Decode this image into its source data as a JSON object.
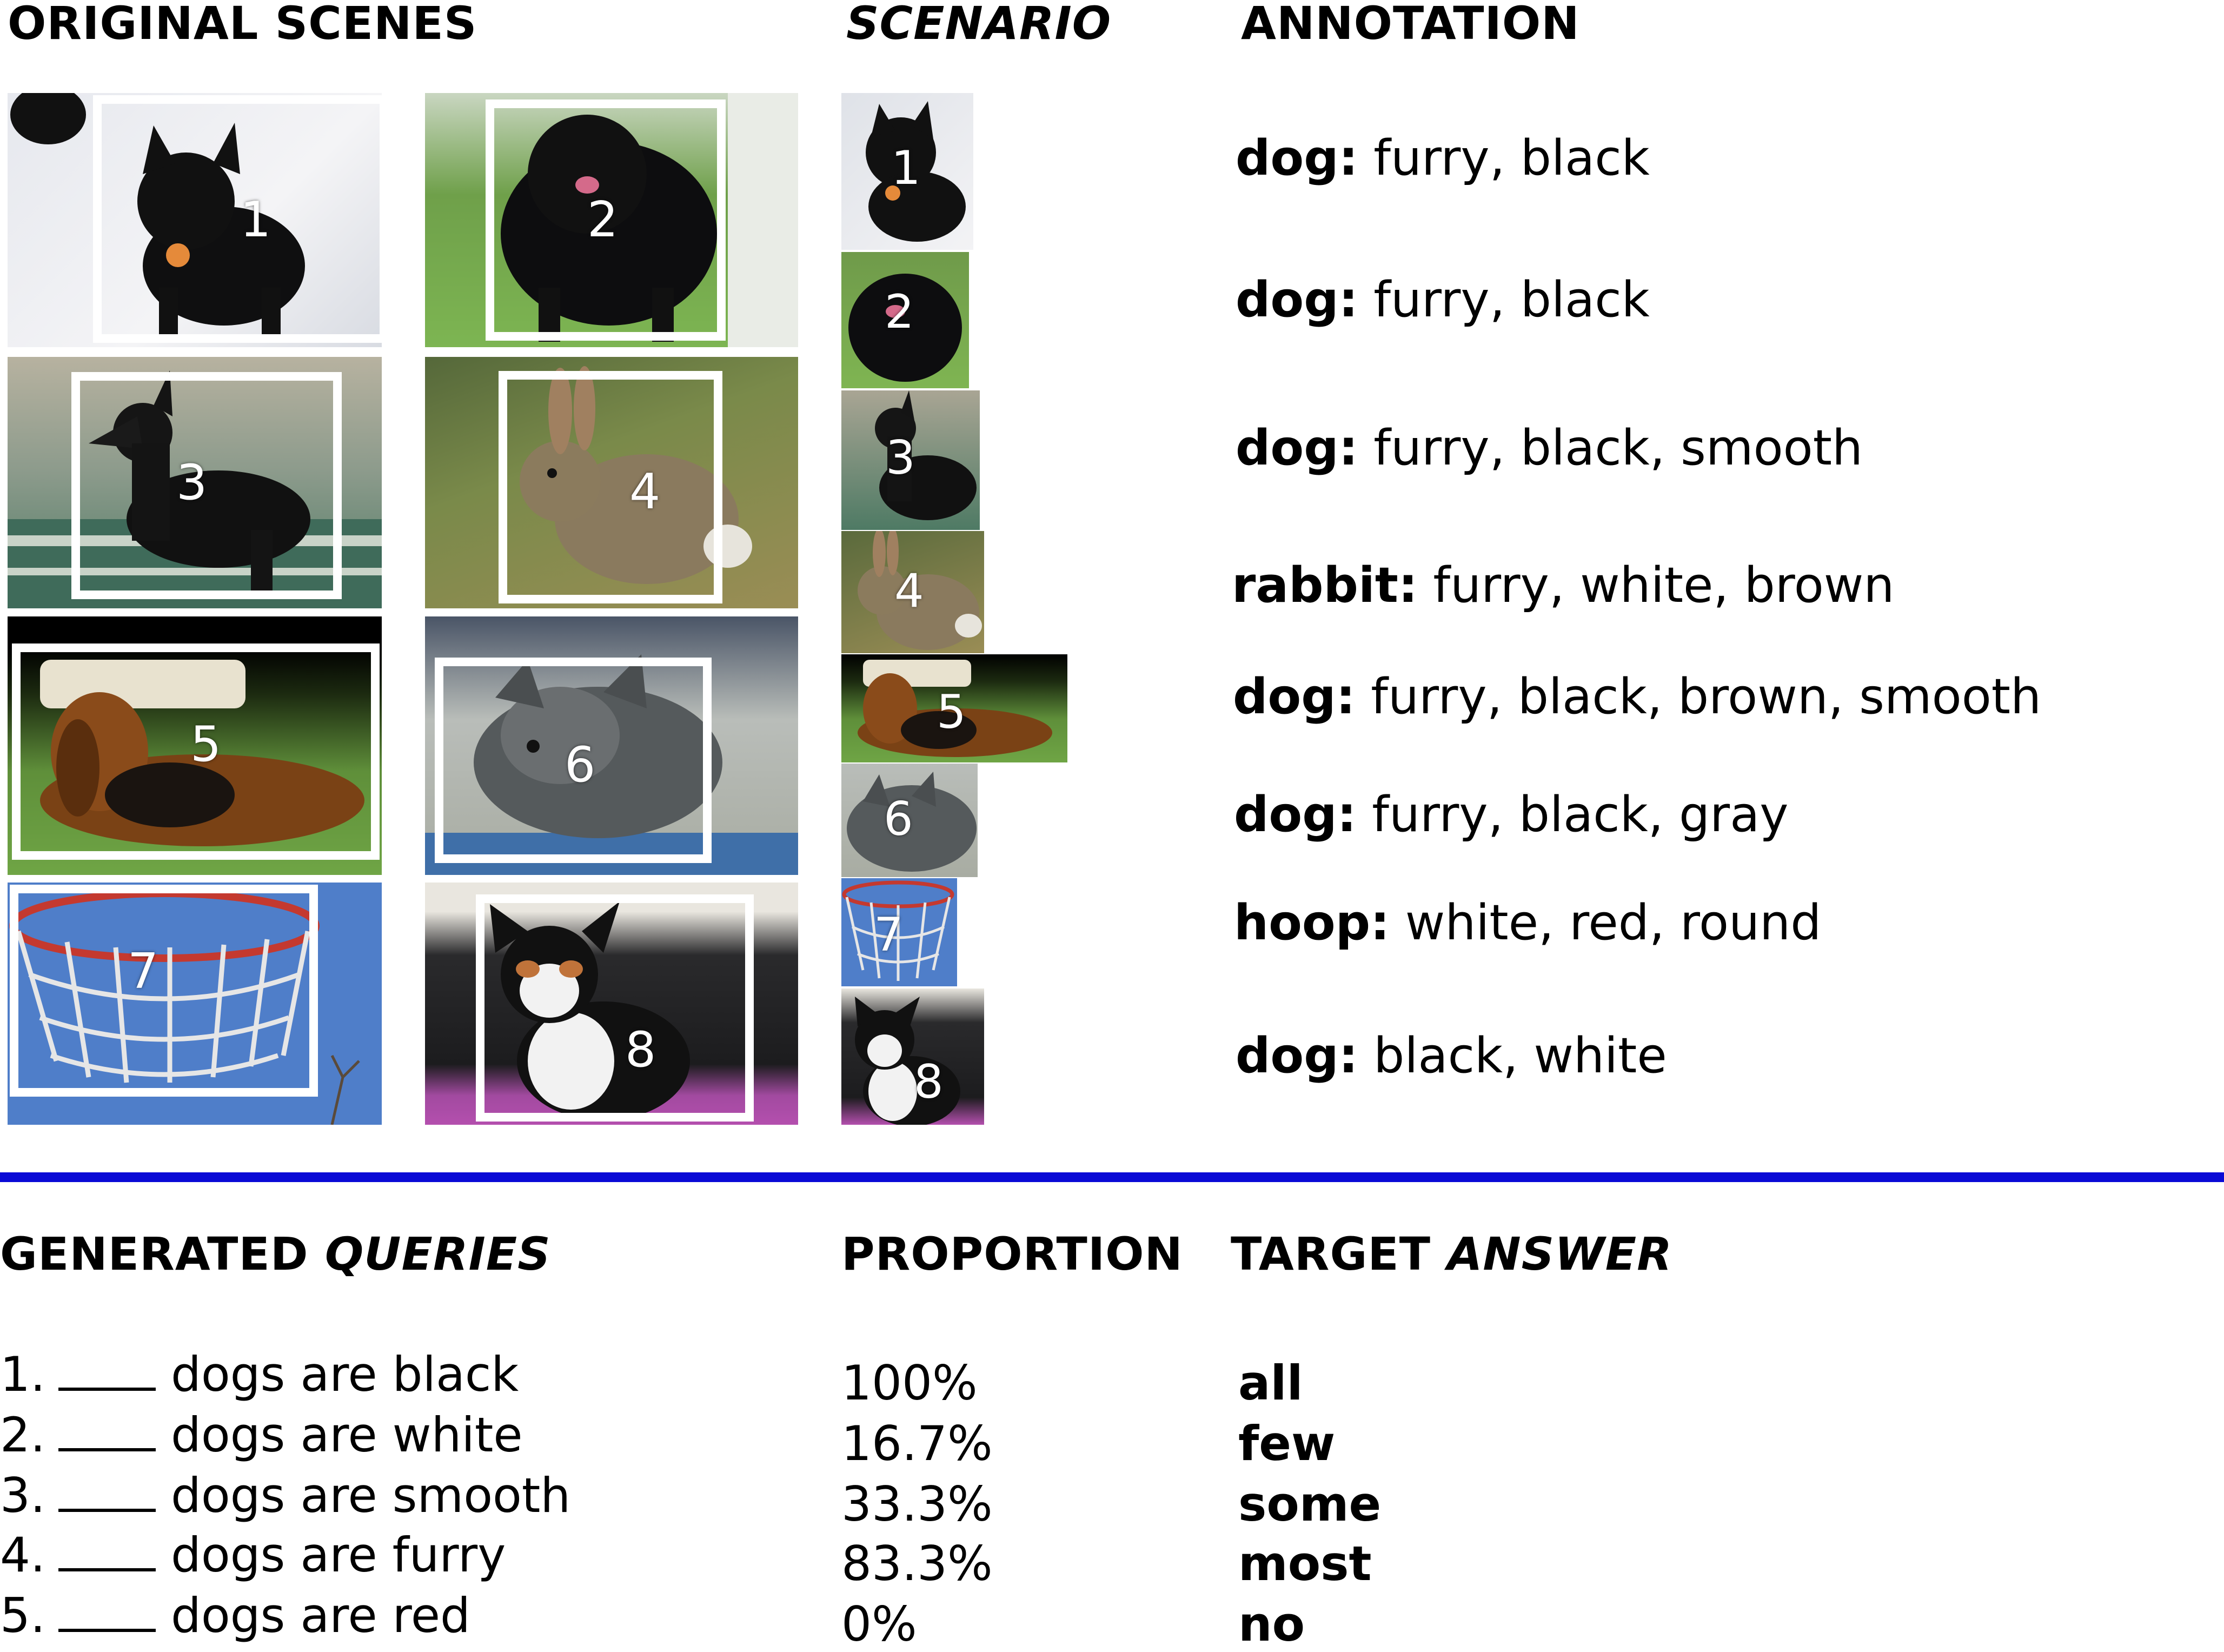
{
  "colors": {
    "divider": "#0a0ad6",
    "frame": "#ffffff"
  },
  "headers": {
    "original_scenes": "ORIGINAL SCENES",
    "scenario": "SCENARIO",
    "annotation": "ANNOTATION",
    "generated": "GENERATED ",
    "queries": "QUERIES",
    "proportion": "PROPORTION",
    "target": "TARGET ",
    "answer": "ANSWER"
  },
  "scenes": [
    {
      "num": "1",
      "subject": "black-dog-icon"
    },
    {
      "num": "2",
      "subject": "black-dog-icon"
    },
    {
      "num": "3",
      "subject": "black-dog-icon"
    },
    {
      "num": "4",
      "subject": "rabbit-icon"
    },
    {
      "num": "5",
      "subject": "hound-dog-icon"
    },
    {
      "num": "6",
      "subject": "gray-dog-icon"
    },
    {
      "num": "7",
      "subject": "basketball-hoop-icon"
    },
    {
      "num": "8",
      "subject": "black-white-dog-icon"
    }
  ],
  "annotations": [
    {
      "cls": "dog:",
      "attrs": " furry, black"
    },
    {
      "cls": "dog:",
      "attrs": " furry, black"
    },
    {
      "cls": "dog:",
      "attrs": " furry, black, smooth"
    },
    {
      "cls": "rabbit:",
      "attrs": " furry, white, brown"
    },
    {
      "cls": "dog:",
      "attrs": " furry, black, brown, smooth"
    },
    {
      "cls": "dog:",
      "attrs": " furry, black, gray"
    },
    {
      "cls": "hoop:",
      "attrs": " white, red, round"
    },
    {
      "cls": "dog:",
      "attrs": " black, white"
    }
  ],
  "queries": [
    {
      "index": "1.",
      "text": "dogs are black",
      "proportion": "100%",
      "answer": "all"
    },
    {
      "index": "2.",
      "text": "dogs are white",
      "proportion": "16.7%",
      "answer": "few"
    },
    {
      "index": "3.",
      "text": "dogs are smooth",
      "proportion": "33.3%",
      "answer": "some"
    },
    {
      "index": "4.",
      "text": "dogs are furry",
      "proportion": "83.3%",
      "answer": "most"
    },
    {
      "index": "5.",
      "text": "dogs are red",
      "proportion": "0%",
      "answer": "no"
    }
  ]
}
